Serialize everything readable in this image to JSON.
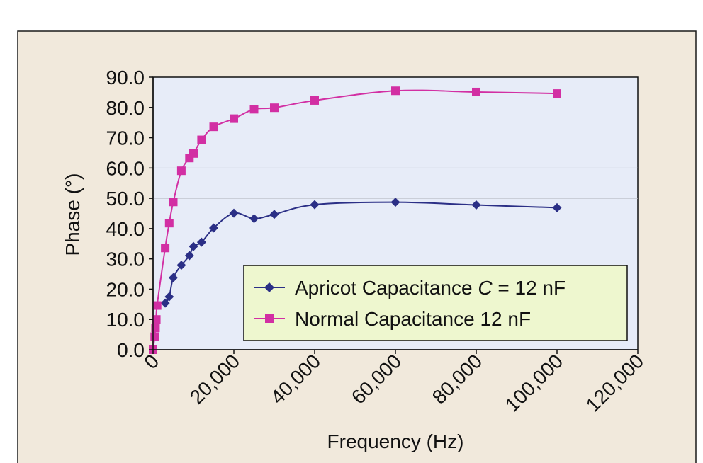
{
  "colors": {
    "frame_bg": "#f1e9dc",
    "plot_bg": "#e7ecf8",
    "apricot": "#2b2f86",
    "normal": "#d22fa3",
    "legend_bg": "#eef7cf"
  },
  "chart_data": {
    "type": "line",
    "xlabel": "Frequency (Hz)",
    "ylabel": "Phase (°)",
    "xlim": [
      0,
      120000
    ],
    "ylim": [
      0,
      90
    ],
    "x_ticks": [
      0,
      20000,
      40000,
      60000,
      80000,
      100000,
      120000
    ],
    "x_tick_labels": [
      "0",
      "20,000",
      "40,000",
      "60,000",
      "80,000",
      "100,000",
      "120,000"
    ],
    "y_ticks": [
      0,
      10,
      20,
      30,
      40,
      50,
      60,
      70,
      80,
      90
    ],
    "y_tick_labels": [
      "0.0",
      "10.0",
      "20.0",
      "30.0",
      "40.0",
      "50.0",
      "60.0",
      "70.0",
      "80.0",
      "90.0"
    ],
    "gridlines_y": [
      50,
      60
    ],
    "legend_position": "lower-right",
    "legend": {
      "apricot_prefix": "Apricot Capacitance ",
      "apricot_var": "C",
      "apricot_suffix": " = 12 nF",
      "normal": "Normal Capacitance 12 nF"
    },
    "series": [
      {
        "key": "apricot",
        "marker": "diamond",
        "points": [
          {
            "x": 3000,
            "y": 15.4
          },
          {
            "x": 4000,
            "y": 17.5
          },
          {
            "x": 5000,
            "y": 23.8
          },
          {
            "x": 7000,
            "y": 27.9
          },
          {
            "x": 9000,
            "y": 31.1
          },
          {
            "x": 10000,
            "y": 34.1
          },
          {
            "x": 12000,
            "y": 35.5
          },
          {
            "x": 15000,
            "y": 40.2
          },
          {
            "x": 20000,
            "y": 45.1
          },
          {
            "x": 25000,
            "y": 43.3
          },
          {
            "x": 30000,
            "y": 44.7
          },
          {
            "x": 40000,
            "y": 47.9
          },
          {
            "x": 60000,
            "y": 48.7
          },
          {
            "x": 80000,
            "y": 47.8
          },
          {
            "x": 100000,
            "y": 46.9
          }
        ]
      },
      {
        "key": "normal",
        "marker": "square",
        "points": [
          {
            "x": 0,
            "y": 0.0
          },
          {
            "x": 400,
            "y": 4.3
          },
          {
            "x": 600,
            "y": 7.2
          },
          {
            "x": 800,
            "y": 10.0
          },
          {
            "x": 1000,
            "y": 14.6
          },
          {
            "x": 3000,
            "y": 33.6
          },
          {
            "x": 4000,
            "y": 41.8
          },
          {
            "x": 5000,
            "y": 48.8
          },
          {
            "x": 7000,
            "y": 59.1
          },
          {
            "x": 9000,
            "y": 63.3
          },
          {
            "x": 10000,
            "y": 64.8
          },
          {
            "x": 12000,
            "y": 69.3
          },
          {
            "x": 15000,
            "y": 73.6
          },
          {
            "x": 20000,
            "y": 76.3
          },
          {
            "x": 25000,
            "y": 79.4
          },
          {
            "x": 30000,
            "y": 79.9
          },
          {
            "x": 40000,
            "y": 82.3
          },
          {
            "x": 60000,
            "y": 85.5
          },
          {
            "x": 80000,
            "y": 85.1
          },
          {
            "x": 100000,
            "y": 84.6
          }
        ]
      }
    ]
  }
}
